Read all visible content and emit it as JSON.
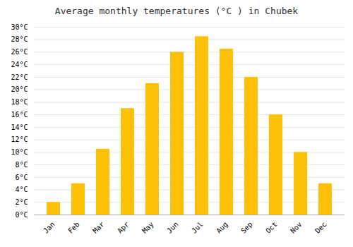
{
  "chart_data": {
    "type": "bar",
    "title": "Average monthly temperatures (°C ) in Chubek",
    "categories": [
      "Jan",
      "Feb",
      "Mar",
      "Apr",
      "May",
      "Jun",
      "Jul",
      "Aug",
      "Sep",
      "Oct",
      "Nov",
      "Dec"
    ],
    "values": [
      2,
      5,
      10.5,
      17,
      21,
      26,
      28.5,
      26.5,
      22,
      16,
      10,
      5
    ],
    "color": "#FFC107",
    "ylim": [
      0,
      30
    ],
    "yticks": [
      {
        "value": 0,
        "label": "0°C"
      },
      {
        "value": 2,
        "label": "2°C"
      },
      {
        "value": 4,
        "label": "4°C"
      },
      {
        "value": 6,
        "label": "6°C"
      },
      {
        "value": 8,
        "label": "8°C"
      },
      {
        "value": 10,
        "label": "10°C"
      },
      {
        "value": 12,
        "label": "12°C"
      },
      {
        "value": 14,
        "label": "14°C"
      },
      {
        "value": 16,
        "label": "16°C"
      },
      {
        "value": 18,
        "label": "18°C"
      },
      {
        "value": 20,
        "label": "20°C"
      },
      {
        "value": 22,
        "label": "22°C"
      },
      {
        "value": 24,
        "label": "24°C"
      },
      {
        "value": 26,
        "label": "26°C"
      },
      {
        "value": 28,
        "label": "28°C"
      },
      {
        "value": 30,
        "label": "30°C"
      }
    ],
    "grid": true
  }
}
